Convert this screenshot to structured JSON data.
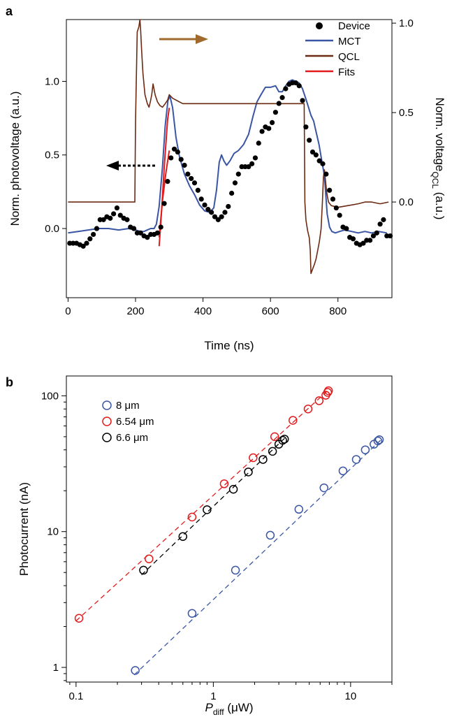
{
  "chart_data": [
    {
      "panel_label": "a",
      "type": "line",
      "xlabel": "Time (ns)",
      "ylabel": "Norm. photovoltage (a.u.)",
      "y2label_main": "Norm. voltage",
      "y2label_sub": "QCL",
      "y2label_tail": " (a.u.)",
      "xlim": [
        -5,
        960
      ],
      "ylim": [
        -0.47,
        1.42
      ],
      "y2lim": [
        -0.535,
        1.02
      ],
      "xticks": [
        "0",
        "200",
        "400",
        "600",
        "800"
      ],
      "yticks": [
        "0.0",
        "0.5",
        "1.0"
      ],
      "y2ticks": [
        "0.0",
        "0.5",
        "1.0"
      ],
      "grid": false,
      "legend_position": "top-right",
      "series": [
        {
          "name": "Device",
          "kind": "markers",
          "color": "#000000",
          "x": [
            5,
            15,
            25,
            35,
            45,
            55,
            65,
            75,
            85,
            95,
            105,
            115,
            125,
            135,
            145,
            155,
            165,
            175,
            185,
            195,
            205,
            215,
            225,
            235,
            245,
            255,
            265,
            275,
            285,
            295,
            305,
            315,
            325,
            335,
            345,
            355,
            365,
            375,
            385,
            395,
            405,
            415,
            425,
            435,
            445,
            455,
            465,
            475,
            485,
            495,
            505,
            515,
            525,
            535,
            545,
            555,
            565,
            575,
            585,
            595,
            605,
            615,
            625,
            635,
            645,
            655,
            665,
            675,
            685,
            695,
            705,
            715,
            725,
            735,
            745,
            755,
            765,
            775,
            785,
            795,
            805,
            815,
            825,
            835,
            845,
            855,
            865,
            875,
            885,
            895,
            905,
            915,
            925,
            935,
            945,
            955
          ],
          "y": [
            -0.1,
            -0.1,
            -0.1,
            -0.11,
            -0.12,
            -0.1,
            -0.07,
            -0.04,
            0.0,
            0.06,
            0.06,
            0.08,
            0.07,
            0.1,
            0.14,
            0.09,
            0.07,
            0.06,
            0.01,
            0.0,
            -0.03,
            -0.03,
            -0.05,
            -0.06,
            -0.04,
            -0.04,
            -0.03,
            0.01,
            0.17,
            0.32,
            0.48,
            0.54,
            0.52,
            0.47,
            0.43,
            0.37,
            0.34,
            0.31,
            0.26,
            0.2,
            0.16,
            0.13,
            0.11,
            0.08,
            0.06,
            0.08,
            0.11,
            0.15,
            0.24,
            0.31,
            0.37,
            0.42,
            0.42,
            0.42,
            0.44,
            0.48,
            0.58,
            0.66,
            0.69,
            0.68,
            0.72,
            0.79,
            0.85,
            0.89,
            0.95,
            0.98,
            0.99,
            0.99,
            0.97,
            0.87,
            0.69,
            0.6,
            0.52,
            0.5,
            0.46,
            0.44,
            0.37,
            0.26,
            0.2,
            0.14,
            0.09,
            0.01,
            0.0,
            -0.06,
            -0.07,
            -0.1,
            -0.11,
            -0.1,
            -0.08,
            -0.08,
            -0.05,
            -0.03,
            0.03,
            0.06,
            -0.05,
            -0.05
          ]
        },
        {
          "name": "MCT",
          "kind": "line",
          "color": "#3a55a4",
          "x": [
            0,
            30,
            60,
            90,
            120,
            150,
            180,
            200,
            215,
            225,
            235,
            245,
            255,
            262,
            270,
            280,
            288,
            296,
            302,
            310,
            320,
            330,
            345,
            360,
            375,
            390,
            405,
            420,
            432,
            440,
            448,
            455,
            462,
            470,
            480,
            492,
            505,
            520,
            535,
            548,
            560,
            572,
            585,
            600,
            615,
            625,
            635,
            645,
            655,
            665,
            675,
            685,
            695,
            705,
            712,
            720,
            728,
            736,
            744,
            752,
            760,
            768,
            775,
            782,
            792,
            805,
            820,
            840,
            860,
            880,
            900,
            920,
            945
          ],
          "y": [
            -0.03,
            -0.02,
            -0.01,
            0.0,
            0.0,
            -0.01,
            0.0,
            -0.01,
            -0.02,
            -0.02,
            -0.01,
            0.0,
            0.0,
            0.03,
            0.15,
            0.42,
            0.7,
            0.87,
            0.9,
            0.82,
            0.62,
            0.49,
            0.37,
            0.29,
            0.23,
            0.16,
            0.12,
            0.11,
            0.14,
            0.26,
            0.45,
            0.5,
            0.46,
            0.43,
            0.46,
            0.51,
            0.53,
            0.57,
            0.64,
            0.76,
            0.86,
            0.91,
            0.96,
            0.96,
            0.97,
            0.93,
            0.93,
            0.97,
            1.0,
            1.01,
            1.0,
            0.99,
            0.95,
            0.88,
            0.83,
            0.77,
            0.73,
            0.65,
            0.57,
            0.46,
            0.36,
            0.1,
            0.01,
            -0.02,
            -0.03,
            -0.02,
            -0.01,
            -0.02,
            -0.03,
            -0.02,
            -0.03,
            -0.02,
            -0.03
          ]
        },
        {
          "name": "QCL",
          "kind": "line",
          "axis": "right",
          "color": "#6b2a12",
          "x": [
            0,
            198,
            200,
            205,
            210,
            213,
            215,
            218,
            222,
            228,
            235,
            240,
            244,
            248,
            252,
            258,
            265,
            272,
            280,
            288,
            295,
            300,
            310,
            320,
            340,
            400,
            500,
            600,
            650,
            690,
            700,
            702,
            705,
            710,
            715,
            718,
            720,
            724,
            730,
            735,
            740,
            745,
            750,
            754,
            757,
            760,
            763,
            767,
            772,
            780,
            800,
            830,
            860,
            880,
            900,
            925,
            950
          ],
          "y": [
            0.0,
            0.0,
            0.45,
            0.95,
            0.98,
            1.02,
            0.97,
            0.85,
            0.72,
            0.6,
            0.55,
            0.53,
            0.56,
            0.6,
            0.66,
            0.6,
            0.56,
            0.54,
            0.53,
            0.55,
            0.57,
            0.6,
            0.58,
            0.57,
            0.55,
            0.55,
            0.55,
            0.55,
            0.55,
            0.55,
            0.55,
            0.0,
            -0.1,
            -0.16,
            -0.2,
            -0.27,
            -0.4,
            -0.38,
            -0.35,
            -0.32,
            -0.27,
            -0.22,
            -0.15,
            0.0,
            0.14,
            0.18,
            0.12,
            0.05,
            0.0,
            -0.02,
            -0.03,
            -0.02,
            -0.01,
            0.0,
            0.0,
            -0.01,
            0.0
          ]
        },
        {
          "name": "Fits",
          "kind": "line",
          "color": "#e31a1c",
          "curves": [
            {
              "x": [
                270,
                275,
                280,
                285,
                290,
                295,
                300
              ],
              "y": [
                -0.12,
                0.04,
                0.22,
                0.41,
                0.58,
                0.74,
                0.82
              ]
            },
            {
              "x": [
                270,
                280,
                290,
                300
              ],
              "y": [
                -0.06,
                0.19,
                0.38,
                0.53
              ]
            }
          ]
        }
      ],
      "annotations": [
        {
          "type": "arrow",
          "direction": "right",
          "style": "solid",
          "color": "#a06a2c"
        },
        {
          "type": "arrow",
          "direction": "left",
          "style": "dotted",
          "color": "#000000"
        }
      ]
    },
    {
      "panel_label": "b",
      "type": "scatter",
      "xscale": "log",
      "yscale": "log",
      "xlabel_main": "P",
      "xlabel_sub": "diff",
      "xlabel_tail": " (μW)",
      "ylabel": "Photocurrent (nA)",
      "xlim": [
        0.085,
        20
      ],
      "ylim": [
        0.78,
        140
      ],
      "xticks": [
        0.1,
        1,
        10
      ],
      "xticklabels": [
        "0.1",
        "1",
        "10"
      ],
      "yticks": [
        1,
        10,
        100
      ],
      "yticklabels": [
        "1",
        "10",
        "100"
      ],
      "grid": false,
      "legend_position": "top-left",
      "series": [
        {
          "name": "8 μm",
          "color": "#3a55a4",
          "x": [
            0.27,
            0.7,
            1.45,
            2.6,
            4.2,
            6.4,
            8.8,
            11.0,
            12.8,
            14.8,
            15.8,
            16.2
          ],
          "y": [
            0.95,
            2.5,
            5.2,
            9.4,
            14.6,
            21.0,
            28.0,
            34.0,
            40.0,
            44.0,
            46.5,
            47.5
          ],
          "fit": {
            "x": [
              0.265,
              16.5
            ],
            "y": [
              0.88,
              47
            ]
          }
        },
        {
          "name": "6.54 μm",
          "color": "#e31a1c",
          "x": [
            0.105,
            0.34,
            0.7,
            1.2,
            1.95,
            2.8,
            3.8,
            4.9,
            5.9,
            6.6,
            6.8,
            6.9
          ],
          "y": [
            2.3,
            6.3,
            12.8,
            22.5,
            35.0,
            50.0,
            66.0,
            80.0,
            92.0,
            101.0,
            106.0,
            109.0
          ],
          "fit": {
            "x": [
              0.1,
              7.0
            ],
            "y": [
              2.2,
              112
            ]
          }
        },
        {
          "name": "6.6 μm",
          "color": "#000000",
          "x": [
            0.31,
            0.6,
            0.9,
            1.4,
            1.8,
            2.3,
            2.7,
            3.0,
            3.2,
            3.3
          ],
          "y": [
            5.2,
            9.2,
            14.5,
            20.5,
            27.5,
            34.0,
            39.0,
            44.0,
            47.0,
            48.0
          ],
          "fit": {
            "x": [
              0.3,
              3.4
            ],
            "y": [
              4.8,
              50
            ]
          }
        }
      ]
    }
  ]
}
